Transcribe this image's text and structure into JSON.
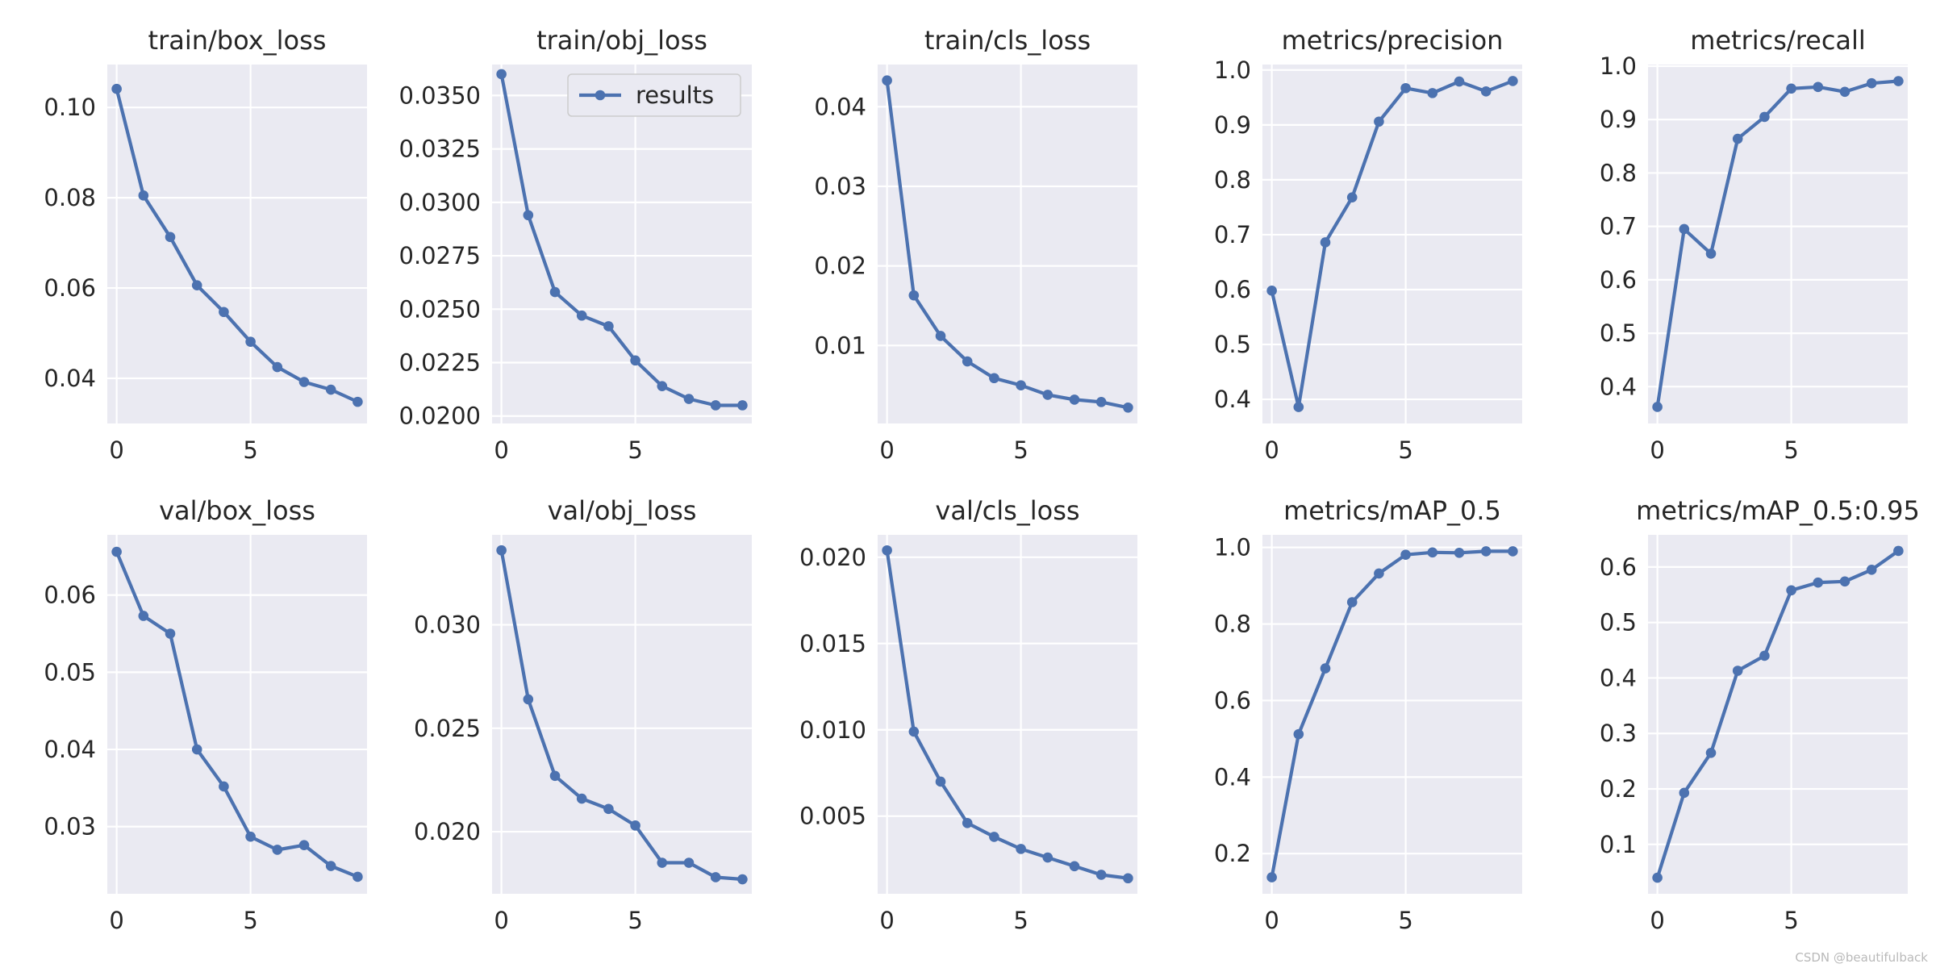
{
  "chart_data": [
    {
      "type": "line",
      "title": "train/box_loss",
      "x": [
        0,
        1,
        2,
        3,
        4,
        5,
        6,
        7,
        8,
        9
      ],
      "values": [
        0.1041,
        0.0805,
        0.0713,
        0.0606,
        0.0547,
        0.0481,
        0.0425,
        0.0392,
        0.0375,
        0.0348
      ],
      "ylim": [
        0.03,
        0.1095
      ],
      "yticks": [
        0.04,
        0.06,
        0.08,
        0.1
      ],
      "ytick_labels": [
        "0.04",
        "0.06",
        "0.08",
        "0.10"
      ],
      "xlim": [
        -0.35,
        9.35
      ],
      "xticks": [
        0,
        5
      ],
      "xtick_labels": [
        "0",
        "5"
      ],
      "legend": false
    },
    {
      "type": "line",
      "title": "train/obj_loss",
      "x": [
        0,
        1,
        2,
        3,
        4,
        5,
        6,
        7,
        8,
        9
      ],
      "values": [
        0.036,
        0.0294,
        0.0258,
        0.0247,
        0.0242,
        0.0226,
        0.0214,
        0.0208,
        0.0205,
        0.0205
      ],
      "ylim": [
        0.01965,
        0.03645
      ],
      "yticks": [
        0.02,
        0.0225,
        0.025,
        0.0275,
        0.03,
        0.0325,
        0.035
      ],
      "ytick_labels": [
        "0.0200",
        "0.0225",
        "0.0250",
        "0.0275",
        "0.0300",
        "0.0325",
        "0.0350"
      ],
      "xlim": [
        -0.35,
        9.35
      ],
      "xticks": [
        0,
        5
      ],
      "xtick_labels": [
        "0",
        "5"
      ],
      "legend": true
    },
    {
      "type": "line",
      "title": "train/cls_loss",
      "x": [
        0,
        1,
        2,
        3,
        4,
        5,
        6,
        7,
        8,
        9
      ],
      "values": [
        0.0433,
        0.0163,
        0.0112,
        0.008,
        0.0059,
        0.005,
        0.0038,
        0.0032,
        0.0029,
        0.0022
      ],
      "ylim": [
        0.0002,
        0.0453
      ],
      "yticks": [
        0.01,
        0.02,
        0.03,
        0.04
      ],
      "ytick_labels": [
        "0.01",
        "0.02",
        "0.03",
        "0.04"
      ],
      "xlim": [
        -0.35,
        9.35
      ],
      "xticks": [
        0,
        5
      ],
      "xtick_labels": [
        "0",
        "5"
      ],
      "legend": false
    },
    {
      "type": "line",
      "title": "metrics/precision",
      "x": [
        0,
        1,
        2,
        3,
        4,
        5,
        6,
        7,
        8,
        9
      ],
      "values": [
        0.598,
        0.386,
        0.686,
        0.768,
        0.906,
        0.967,
        0.958,
        0.979,
        0.961,
        0.98
      ],
      "ylim": [
        0.356,
        1.01
      ],
      "yticks": [
        0.4,
        0.5,
        0.6,
        0.7,
        0.8,
        0.9,
        1.0
      ],
      "ytick_labels": [
        "0.4",
        "0.5",
        "0.6",
        "0.7",
        "0.8",
        "0.9",
        "1.0"
      ],
      "xlim": [
        -0.35,
        9.35
      ],
      "xticks": [
        0,
        5
      ],
      "xtick_labels": [
        "0",
        "5"
      ],
      "legend": false
    },
    {
      "type": "line",
      "title": "metrics/recall",
      "x": [
        0,
        1,
        2,
        3,
        4,
        5,
        6,
        7,
        8,
        9
      ],
      "values": [
        0.362,
        0.695,
        0.649,
        0.864,
        0.905,
        0.958,
        0.961,
        0.952,
        0.968,
        0.972
      ],
      "ylim": [
        0.331,
        1.003
      ],
      "yticks": [
        0.4,
        0.5,
        0.6,
        0.7,
        0.8,
        0.9,
        1.0
      ],
      "ytick_labels": [
        "0.4",
        "0.5",
        "0.6",
        "0.7",
        "0.8",
        "0.9",
        "1.0"
      ],
      "xlim": [
        -0.35,
        9.35
      ],
      "xticks": [
        0,
        5
      ],
      "xtick_labels": [
        "0",
        "5"
      ],
      "legend": false
    },
    {
      "type": "line",
      "title": "val/box_loss",
      "x": [
        0,
        1,
        2,
        3,
        4,
        5,
        6,
        7,
        8,
        9
      ],
      "values": [
        0.0656,
        0.0573,
        0.055,
        0.04,
        0.0352,
        0.0287,
        0.027,
        0.0276,
        0.0249,
        0.0235
      ],
      "ylim": [
        0.0213,
        0.0678
      ],
      "yticks": [
        0.03,
        0.04,
        0.05,
        0.06
      ],
      "ytick_labels": [
        "0.03",
        "0.04",
        "0.05",
        "0.06"
      ],
      "xlim": [
        -0.35,
        9.35
      ],
      "xticks": [
        0,
        5
      ],
      "xtick_labels": [
        "0",
        "5"
      ],
      "legend": false
    },
    {
      "type": "line",
      "title": "val/obj_loss",
      "x": [
        0,
        1,
        2,
        3,
        4,
        5,
        6,
        7,
        8,
        9
      ],
      "values": [
        0.0336,
        0.0264,
        0.0227,
        0.0216,
        0.0211,
        0.0203,
        0.0185,
        0.0185,
        0.0178,
        0.0177
      ],
      "ylim": [
        0.017,
        0.03435
      ],
      "yticks": [
        0.02,
        0.025,
        0.03
      ],
      "ytick_labels": [
        "0.020",
        "0.025",
        "0.030"
      ],
      "xlim": [
        -0.35,
        9.35
      ],
      "xticks": [
        0,
        5
      ],
      "xtick_labels": [
        "0",
        "5"
      ],
      "legend": false
    },
    {
      "type": "line",
      "title": "val/cls_loss",
      "x": [
        0,
        1,
        2,
        3,
        4,
        5,
        6,
        7,
        8,
        9
      ],
      "values": [
        0.0204,
        0.0099,
        0.007,
        0.0046,
        0.0038,
        0.0031,
        0.0026,
        0.0021,
        0.0016,
        0.0014
      ],
      "ylim": [
        0.0005,
        0.0213
      ],
      "yticks": [
        0.005,
        0.01,
        0.015,
        0.02
      ],
      "ytick_labels": [
        "0.005",
        "0.010",
        "0.015",
        "0.020"
      ],
      "xlim": [
        -0.35,
        9.35
      ],
      "xticks": [
        0,
        5
      ],
      "xtick_labels": [
        "0",
        "5"
      ],
      "legend": false
    },
    {
      "type": "line",
      "title": "metrics/mAP_0.5",
      "x": [
        0,
        1,
        2,
        3,
        4,
        5,
        6,
        7,
        8,
        9
      ],
      "values": [
        0.138,
        0.512,
        0.684,
        0.857,
        0.932,
        0.981,
        0.987,
        0.986,
        0.99,
        0.99
      ],
      "ylim": [
        0.095,
        1.033
      ],
      "yticks": [
        0.2,
        0.4,
        0.6,
        0.8,
        1.0
      ],
      "ytick_labels": [
        "0.2",
        "0.4",
        "0.6",
        "0.8",
        "1.0"
      ],
      "xlim": [
        -0.35,
        9.35
      ],
      "xticks": [
        0,
        5
      ],
      "xtick_labels": [
        "0",
        "5"
      ],
      "legend": false
    },
    {
      "type": "line",
      "title": "metrics/mAP_0.5:0.95",
      "x": [
        0,
        1,
        2,
        3,
        4,
        5,
        6,
        7,
        8,
        9
      ],
      "values": [
        0.04,
        0.193,
        0.265,
        0.413,
        0.44,
        0.558,
        0.572,
        0.574,
        0.595,
        0.629
      ],
      "ylim": [
        0.011,
        0.658
      ],
      "yticks": [
        0.1,
        0.2,
        0.3,
        0.4,
        0.5,
        0.6
      ],
      "ytick_labels": [
        "0.1",
        "0.2",
        "0.3",
        "0.4",
        "0.5",
        "0.6"
      ],
      "xlim": [
        -0.35,
        9.35
      ],
      "xticks": [
        0,
        5
      ],
      "xtick_labels": [
        "0",
        "5"
      ],
      "legend": false
    }
  ],
  "legend_label": "results",
  "colors": {
    "line": "#4c72b0",
    "panel_bg": "#eaeaf2",
    "grid": "#ffffff",
    "text": "#262626"
  },
  "watermark": "CSDN @beautifulback"
}
